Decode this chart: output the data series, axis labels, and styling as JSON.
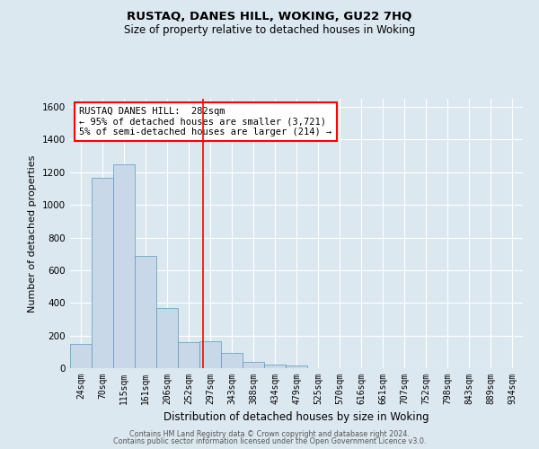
{
  "title": "RUSTAQ, DANES HILL, WOKING, GU22 7HQ",
  "subtitle": "Size of property relative to detached houses in Woking",
  "xlabel": "Distribution of detached houses by size in Woking",
  "ylabel": "Number of detached properties",
  "footer_line1": "Contains HM Land Registry data © Crown copyright and database right 2024.",
  "footer_line2": "Contains public sector information licensed under the Open Government Licence v3.0.",
  "annotation_line1": "RUSTAQ DANES HILL:  282sqm",
  "annotation_line2": "← 95% of detached houses are smaller (3,721)",
  "annotation_line3": "5% of semi-detached houses are larger (214) →",
  "bin_labels": [
    "24sqm",
    "70sqm",
    "115sqm",
    "161sqm",
    "206sqm",
    "252sqm",
    "297sqm",
    "343sqm",
    "388sqm",
    "434sqm",
    "479sqm",
    "525sqm",
    "570sqm",
    "616sqm",
    "661sqm",
    "707sqm",
    "752sqm",
    "798sqm",
    "843sqm",
    "889sqm",
    "934sqm"
  ],
  "bin_values": [
    148,
    1165,
    1248,
    685,
    370,
    162,
    165,
    93,
    38,
    23,
    15,
    0,
    0,
    0,
    0,
    0,
    0,
    0,
    0,
    0,
    0
  ],
  "bar_color": "#c8d8e8",
  "bar_edge_color": "#5a9aba",
  "annotation_box_color": "#cc0000",
  "ylim": [
    0,
    1650
  ],
  "yticks": [
    0,
    200,
    400,
    600,
    800,
    1000,
    1200,
    1400,
    1600
  ],
  "background_color": "#dce8f0",
  "grid_color": "#ffffff"
}
